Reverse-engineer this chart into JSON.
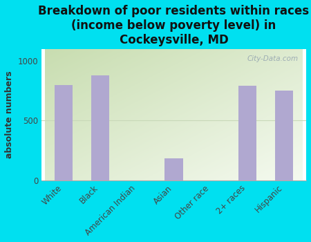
{
  "categories": [
    "White",
    "Black",
    "American Indian",
    "Asian",
    "Other race",
    "2+ races",
    "Hispanic"
  ],
  "values": [
    800,
    880,
    0,
    185,
    0,
    790,
    750
  ],
  "bar_color": "#b0a8d0",
  "title": "Breakdown of poor residents within races\n(income below poverty level) in\nCockeysville, MD",
  "ylabel": "absolute numbers",
  "ylim": [
    0,
    1100
  ],
  "yticks": [
    0,
    500,
    1000
  ],
  "background_outer": "#00e0f0",
  "bg_top_left": "#c8ddb0",
  "bg_bottom_right": "#f5faf0",
  "grid_color": "#c8d8b8",
  "watermark": "City-Data.com",
  "title_fontsize": 12,
  "ylabel_fontsize": 9,
  "tick_fontsize": 8.5
}
